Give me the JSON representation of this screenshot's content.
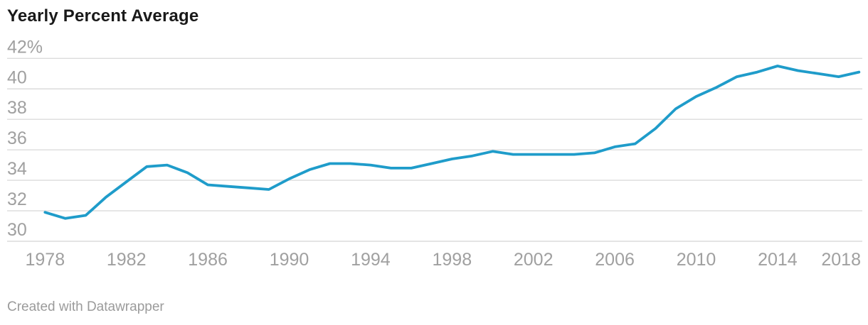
{
  "title": "Yearly Percent Average",
  "footer": {
    "credit": "Created with Datawrapper"
  },
  "colors": {
    "line": "#1f9cca",
    "grid": "#dbdbdb",
    "tick_text": "#a0a0a0",
    "title_text": "#191919",
    "footer_text": "#9b9b9b"
  },
  "chart_data": {
    "type": "line",
    "title": "Yearly Percent Average",
    "xlabel": "",
    "ylabel": "",
    "x": [
      1978,
      1979,
      1980,
      1981,
      1982,
      1983,
      1984,
      1985,
      1986,
      1987,
      1988,
      1989,
      1990,
      1991,
      1992,
      1993,
      1994,
      1995,
      1996,
      1997,
      1998,
      1999,
      2000,
      2001,
      2002,
      2003,
      2004,
      2005,
      2006,
      2007,
      2008,
      2009,
      2010,
      2011,
      2012,
      2013,
      2014,
      2015,
      2016,
      2017,
      2018
    ],
    "values": [
      31.9,
      31.5,
      31.7,
      32.9,
      33.9,
      34.9,
      35.0,
      34.5,
      33.7,
      33.6,
      33.5,
      33.4,
      34.1,
      34.7,
      35.1,
      35.1,
      35.0,
      34.8,
      34.8,
      35.1,
      35.4,
      35.6,
      35.9,
      35.7,
      35.7,
      35.7,
      35.7,
      35.8,
      36.2,
      36.4,
      37.4,
      38.7,
      39.5,
      40.1,
      40.8,
      41.1,
      41.5,
      41.2,
      41.0,
      40.8,
      41.1
    ],
    "xlim": [
      1978,
      2018
    ],
    "ylim": [
      30,
      42
    ],
    "x_ticks": [
      1978,
      1982,
      1986,
      1990,
      1994,
      1998,
      2002,
      2006,
      2010,
      2014,
      2018
    ],
    "x_tick_labels": [
      "1978",
      "1982",
      "1986",
      "1990",
      "1994",
      "1998",
      "2002",
      "2006",
      "2010",
      "2014",
      "2018"
    ],
    "y_ticks": [
      42,
      40,
      38,
      36,
      34,
      32,
      30
    ],
    "y_tick_labels": [
      "42%",
      "40",
      "38",
      "36",
      "34",
      "32",
      "30"
    ],
    "grid": true,
    "legend": false
  }
}
